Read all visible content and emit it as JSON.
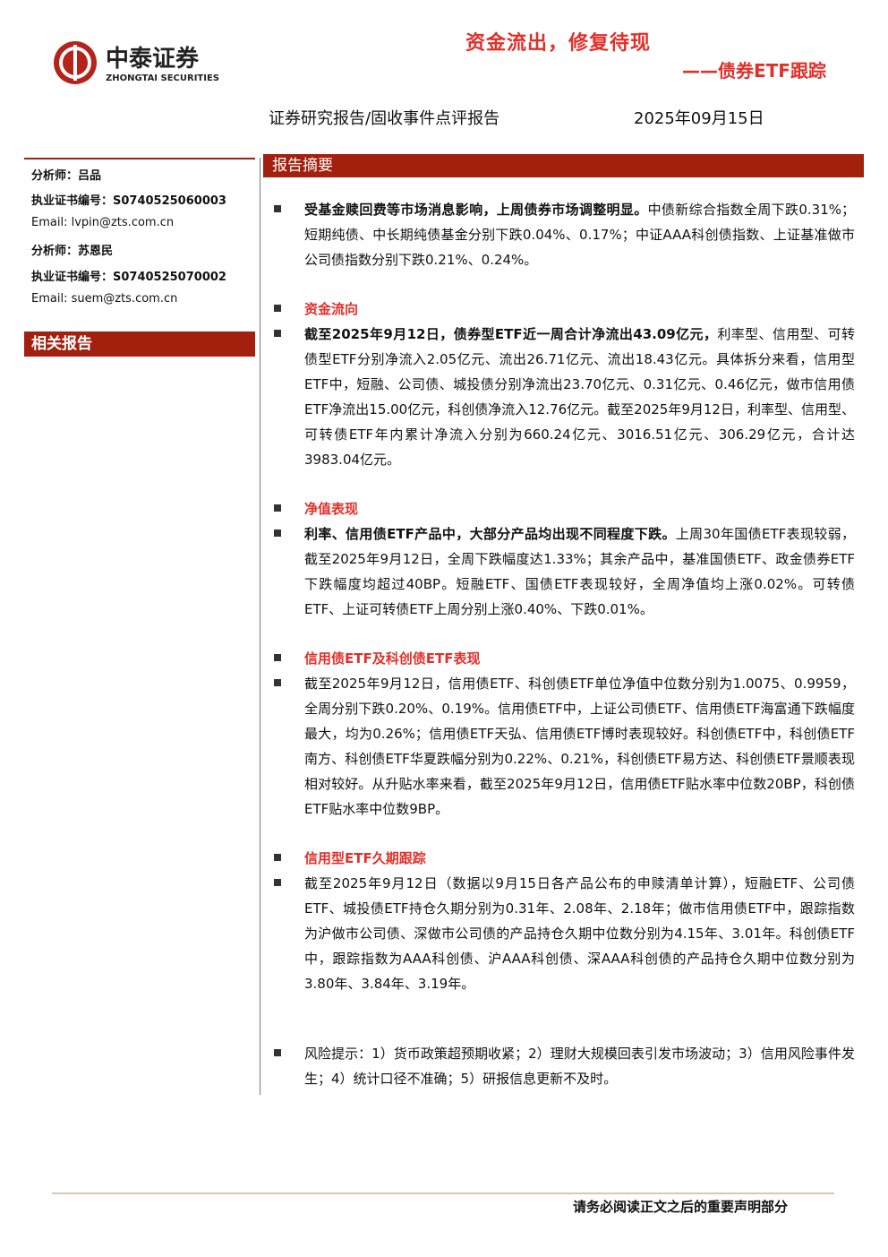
{
  "header": {
    "logo_cn": "中泰证券",
    "logo_en": "ZHONGTAI SECURITIES",
    "title": "资金流出，修复待现",
    "subtitle": "——债券ETF跟踪",
    "report_type": "证券研究报告/固收事件点评报告",
    "date": "2025年09月15日"
  },
  "sidebar": {
    "lines": [
      "分析师：吕品",
      "执业证书编号：S0740525060003",
      "Email: lvpin@zts.com.cn",
      "分析师：苏恩民",
      "执业证书编号：S0740525070002",
      "Email: suem@zts.com.cn"
    ],
    "related_title": "相关报告"
  },
  "summary": {
    "title": "报告摘要",
    "sections": [
      {
        "paragraph": {
          "bold": "受基金赎回费等市场消息影响，上周债券市场调整明显。",
          "text": "中债新综合指数全周下跌0.31%；短期纯债、中长期纯债基金分别下跌0.04%、0.17%；中证AAA科创债指数、上证基准做市公司债指数分别下跌0.21%、0.24%。"
        }
      },
      {
        "heading": "资金流向",
        "paragraph": {
          "bold": "截至2025年9月12日，债券型ETF近一周合计净流出43.09亿元，",
          "text": "利率型、信用型、可转债型ETF分别净流入2.05亿元、流出26.71亿元、流出18.43亿元。具体拆分来看，信用型ETF中，短融、公司债、城投债分别净流出23.70亿元、0.31亿元、0.46亿元，做市信用债ETF净流出15.00亿元，科创债净流入12.76亿元。截至2025年9月12日，利率型、信用型、可转债ETF年内累计净流入分别为660.24亿元、3016.51亿元、306.29亿元，合计达3983.04亿元。"
        }
      },
      {
        "heading": "净值表现",
        "paragraph": {
          "bold": "利率、信用债ETF产品中，大部分产品均出现不同程度下跌。",
          "text": "上周30年国债ETF表现较弱，截至2025年9月12日，全周下跌幅度达1.33%；其余产品中，基准国债ETF、政金债券ETF下跌幅度均超过40BP。短融ETF、国债ETF表现较好，全周净值均上涨0.02%。可转债ETF、上证可转债ETF上周分别上涨0.40%、下跌0.01%。"
        }
      },
      {
        "heading": "信用债ETF及科创债ETF表现",
        "paragraph": {
          "text": "截至2025年9月12日，信用债ETF、科创债ETF单位净值中位数分别为1.0075、0.9959，全周分别下跌0.20%、0.19%。信用债ETF中，上证公司债ETF、信用债ETF海富通下跌幅度最大，均为0.26%；信用债ETF天弘、信用债ETF博时表现较好。科创债ETF中，科创债ETF南方、科创债ETF华夏跌幅分别为0.22%、0.21%，科创债ETF易方达、科创债ETF景顺表现相对较好。从升贴水率来看，截至2025年9月12日，信用债ETF贴水率中位数20BP，科创债ETF贴水率中位数9BP。"
        }
      },
      {
        "heading": "信用型ETF久期跟踪",
        "paragraph": {
          "text": "截至2025年9月12日（数据以9月15日各产品公布的申赎清单计算），短融ETF、公司债ETF、城投债ETF持仓久期分别为0.31年、2.08年、2.18年；做市信用债ETF中，跟踪指数为沪做市公司债、深做市公司债的产品持仓久期中位数分别为4.15年、3.01年。科创债ETF中，跟踪指数为AAA科创债、沪AAA科创债、深AAA科创债的产品持仓久期中位数分别为3.80年、3.84年、3.19年。"
        }
      },
      {
        "paragraph": {
          "text": "风险提示：1）货币政策超预期收紧；2）理财大规模回表引发市场波动；3）信用风险事件发生；4）统计口径不准确；5）研报信息更新不及时。"
        }
      }
    ]
  },
  "footer": {
    "disclaimer": "请务必阅读正文之后的重要声明部分"
  }
}
